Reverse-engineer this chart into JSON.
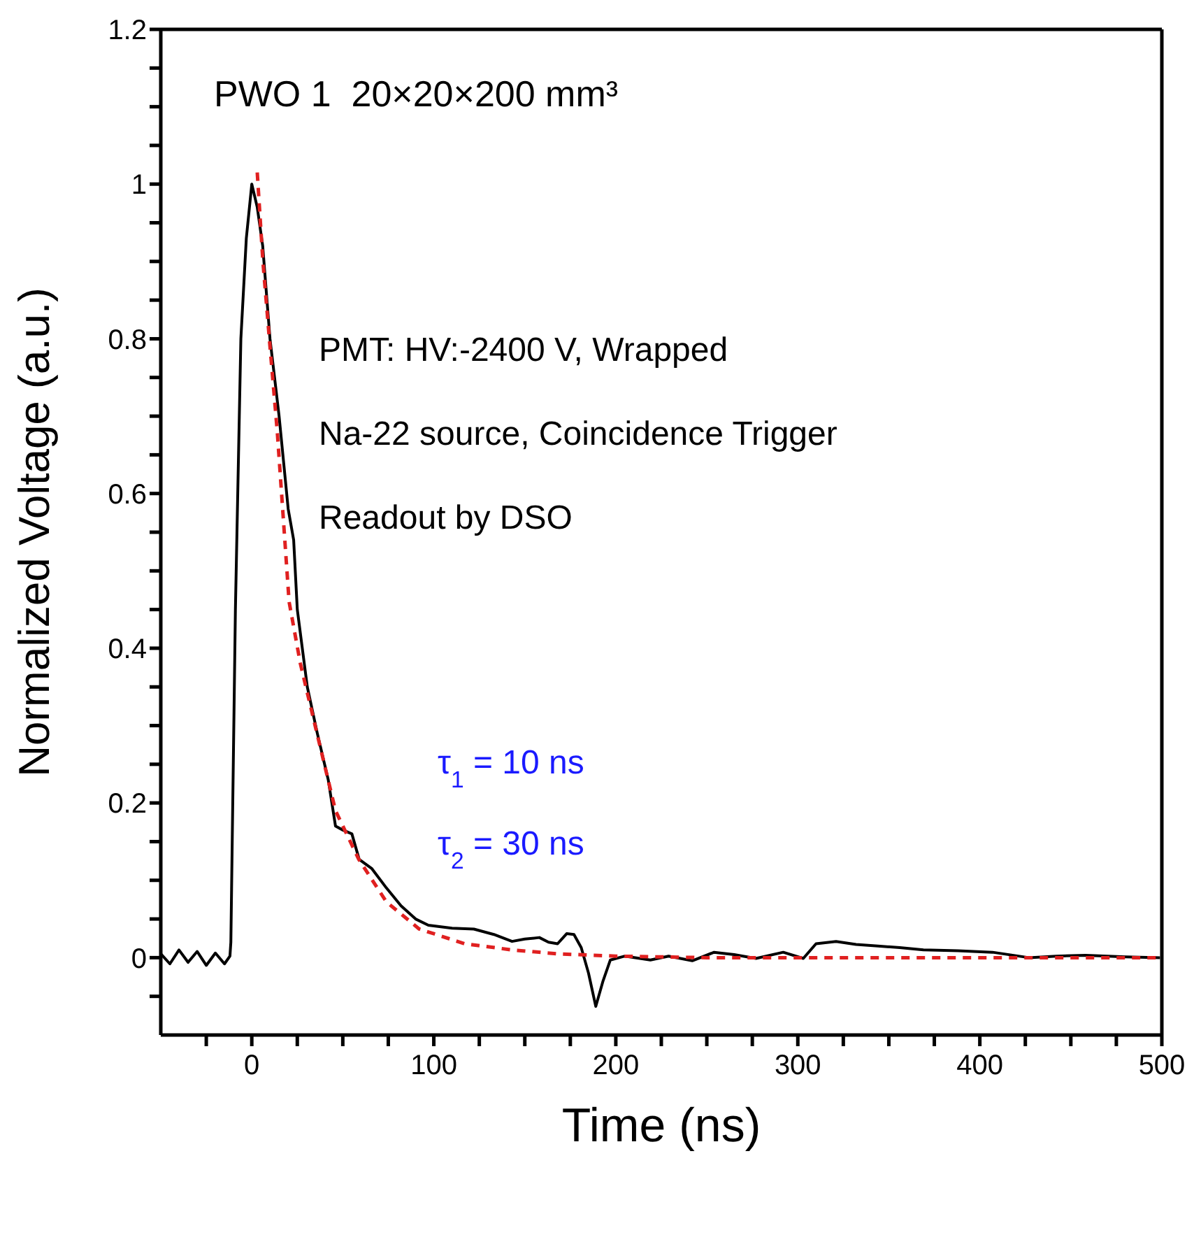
{
  "chart_data": {
    "type": "line",
    "title": "PWO 1  20×20×200 mm³",
    "xlabel": "Time (ns)",
    "ylabel": "Normalized Voltage (a.u.)",
    "annotations": [
      "PMT: HV:-2400 V, Wrapped",
      "Na-22 source, Coincidence Trigger",
      "Readout by DSO",
      "τ$_{1}$ = 10 ns",
      "τ$_{2}$ = 30 ns"
    ],
    "xlim": [
      -50,
      500
    ],
    "ylim": [
      -0.1,
      1.2
    ],
    "xticks": [
      {
        "value": -25,
        "label": null
      },
      0,
      {
        "value": 25,
        "label": null
      },
      {
        "value": 50,
        "label": null
      },
      {
        "value": 75,
        "label": null
      },
      100,
      {
        "value": 125,
        "label": null
      },
      {
        "value": 150,
        "label": null
      },
      {
        "value": 175,
        "label": null
      },
      200,
      {
        "value": 225,
        "label": null
      },
      {
        "value": 250,
        "label": null
      },
      {
        "value": 275,
        "label": null
      },
      300,
      {
        "value": 325,
        "label": null
      },
      {
        "value": 350,
        "label": null
      },
      {
        "value": 375,
        "label": null
      },
      400,
      {
        "value": 425,
        "label": null
      },
      {
        "value": 450,
        "label": null
      },
      {
        "value": 475,
        "label": null
      },
      500
    ],
    "yticks": [
      {
        "value": -0.05,
        "label": null
      },
      0,
      {
        "value": 0.05,
        "label": null
      },
      {
        "value": 0.1,
        "label": null
      },
      {
        "value": 0.15,
        "label": null
      },
      0.2,
      {
        "value": 0.25,
        "label": null
      },
      {
        "value": 0.3,
        "label": null
      },
      {
        "value": 0.35,
        "label": null
      },
      0.4,
      {
        "value": 0.45,
        "label": null
      },
      {
        "value": 0.5,
        "label": null
      },
      {
        "value": 0.55,
        "label": null
      },
      0.6,
      {
        "value": 0.65,
        "label": null
      },
      {
        "value": 0.7,
        "label": null
      },
      {
        "value": 0.75,
        "label": null
      },
      0.8,
      {
        "value": 0.85,
        "label": null
      },
      {
        "value": 0.9,
        "label": null
      },
      {
        "value": 0.95,
        "label": null
      },
      1,
      {
        "value": 1.05,
        "label": null
      },
      {
        "value": 1.1,
        "label": null
      },
      {
        "value": 1.15,
        "label": null
      },
      1.2
    ],
    "marker": "none",
    "series": [
      {
        "color": "#000000",
        "line_style": "solid",
        "x": [
          -50,
          -45,
          -40,
          -35,
          -30,
          -25,
          -20,
          -15,
          -12,
          -11.5,
          -9,
          -6,
          -3,
          0,
          3,
          6,
          10,
          13,
          15,
          20,
          23,
          25,
          30.5,
          36,
          42,
          46,
          50,
          55,
          59,
          66,
          74,
          82,
          90,
          97,
          110,
          122,
          133,
          143,
          150,
          158,
          163,
          168,
          173,
          177,
          181,
          185,
          189,
          193,
          197,
          205,
          219,
          229,
          242,
          254,
          265,
          277,
          292,
          303,
          310,
          321,
          332,
          344,
          356,
          369,
          388,
          407,
          427,
          442,
          458,
          480,
          499
        ],
        "values": [
          0.005,
          -0.008,
          0.01,
          -0.006,
          0.008,
          -0.01,
          0.006,
          -0.008,
          0.002,
          0.02,
          0.45,
          0.8,
          0.93,
          1.0,
          0.97,
          0.92,
          0.8,
          0.74,
          0.7,
          0.58,
          0.54,
          0.45,
          0.35,
          0.29,
          0.23,
          0.17,
          0.165,
          0.16,
          0.127,
          0.115,
          0.09,
          0.067,
          0.05,
          0.042,
          0.038,
          0.037,
          0.03,
          0.021,
          0.024,
          0.026,
          0.02,
          0.018,
          0.031,
          0.03,
          0.013,
          -0.02,
          -0.063,
          -0.03,
          -0.003,
          0.002,
          -0.003,
          0.002,
          -0.004,
          0.007,
          0.004,
          -0.001,
          0.007,
          -0.001,
          0.018,
          0.021,
          0.017,
          0.015,
          0.013,
          0.01,
          0.009,
          0.007,
          0,
          0.002,
          0.003,
          0.001,
          0
        ]
      },
      {
        "color": "#e02020",
        "line_style": "dashed",
        "x": [
          3,
          6.1,
          10,
          14,
          20.5,
          26.7,
          35.8,
          46,
          58.8,
          74,
          92,
          117,
          143,
          168,
          200,
          250,
          300,
          350,
          400,
          450,
          500
        ],
        "values": [
          1.015,
          0.9,
          0.79,
          0.68,
          0.46,
          0.38,
          0.29,
          0.19,
          0.127,
          0.072,
          0.037,
          0.018,
          0.01,
          0.005,
          0.002,
          0,
          0,
          0,
          0,
          0,
          0
        ]
      }
    ]
  }
}
